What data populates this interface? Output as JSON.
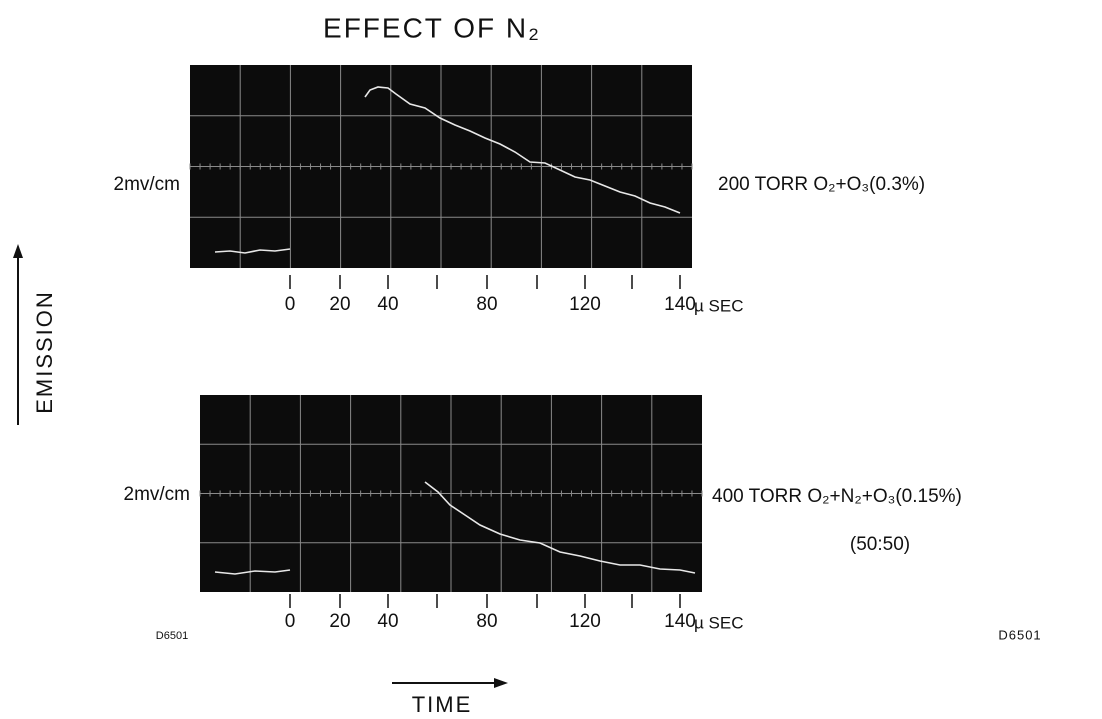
{
  "title": "EFFECT OF N₂",
  "y_axis_label": "EMISSION",
  "x_axis_label": "TIME",
  "panels": [
    {
      "scale": "2mv/cm",
      "condition": [
        "200 TORR O₂+O₃(0.3%)"
      ],
      "ticks": [
        "0",
        "20",
        "40",
        "80",
        "120",
        "140"
      ],
      "unit": "µ SEC"
    },
    {
      "scale": "2mv/cm",
      "condition": [
        "400 TORR O₂+N₂+O₃(0.15%)",
        "(50:50)"
      ],
      "ticks": [
        "0",
        "20",
        "40",
        "80",
        "120",
        "140"
      ],
      "unit": "µ SEC"
    }
  ],
  "codes": [
    "D6501",
    "D6501"
  ]
}
